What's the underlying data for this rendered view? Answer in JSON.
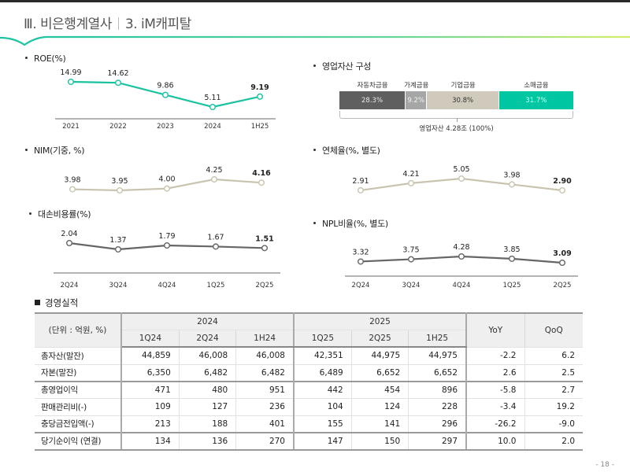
{
  "header": {
    "section": "Ⅲ. 비은행계열사",
    "subsection": "3. iM캐피탈"
  },
  "colors": {
    "accent_teal": "#19c3a0",
    "nim_line": "#c9c4b0",
    "dark_line": "#666666",
    "seg_auto": "#5f5f5f",
    "seg_household": "#a6a6a6",
    "seg_corporate": "#cfcabb",
    "seg_retail": "#00c6a2"
  },
  "chart_data": [
    {
      "type": "line",
      "id": "roe",
      "title": "ROE(%)",
      "categories": [
        "2021",
        "2022",
        "2023",
        "2024",
        "1H25"
      ],
      "values": [
        14.99,
        14.62,
        9.86,
        5.11,
        9.19
      ],
      "labels": [
        "14.99",
        "14.62",
        "9.86",
        "5.11",
        "9.19"
      ],
      "show_axis": true,
      "color": "#19c3a0"
    },
    {
      "type": "line",
      "id": "nim",
      "title": "NIM(기중, %)",
      "categories": [
        "2021",
        "2022",
        "2023",
        "2024",
        "1H25"
      ],
      "values": [
        3.98,
        3.95,
        4.0,
        4.25,
        4.16
      ],
      "labels": [
        "3.98",
        "3.95",
        "4.00",
        "4.25",
        "4.16"
      ],
      "show_axis": false,
      "color": "#c9c4b0"
    },
    {
      "type": "line",
      "id": "credit_cost",
      "title": "대손비용률(%)",
      "categories": [
        "2Q24",
        "3Q24",
        "4Q24",
        "1Q25",
        "2Q25"
      ],
      "values": [
        2.04,
        1.37,
        1.79,
        1.67,
        1.51
      ],
      "labels": [
        "2.04",
        "1.37",
        "1.79",
        "1.67",
        "1.51"
      ],
      "show_axis": true,
      "color": "#666666"
    },
    {
      "type": "line",
      "id": "delinquency",
      "title": "연체율(%, 별도)",
      "categories": [
        "2Q24",
        "3Q24",
        "4Q24",
        "1Q25",
        "2Q25"
      ],
      "values": [
        2.91,
        4.21,
        5.05,
        3.98,
        2.9
      ],
      "labels": [
        "2.91",
        "4.21",
        "5.05",
        "3.98",
        "2.90"
      ],
      "show_axis": false,
      "color": "#c9c4b0"
    },
    {
      "type": "line",
      "id": "npl",
      "title": "NPL비율(%, 별도)",
      "categories": [
        "2Q24",
        "3Q24",
        "4Q24",
        "1Q25",
        "2Q25"
      ],
      "values": [
        3.32,
        3.75,
        4.28,
        3.85,
        3.09
      ],
      "labels": [
        "3.32",
        "3.75",
        "4.28",
        "3.85",
        "3.09"
      ],
      "show_axis": true,
      "color": "#666666"
    },
    {
      "type": "bar",
      "id": "asset_mix",
      "title": "영업자산 구성",
      "stacked": true,
      "categories": [
        "자동차금융",
        "가계금융",
        "기업금융",
        "소매금융"
      ],
      "values": [
        28.3,
        9.2,
        30.8,
        31.7
      ],
      "labels": [
        "28.3%",
        "9.2%",
        "30.8%",
        "31.7%"
      ],
      "total_label": "영업자산 4.28조 (100%)"
    }
  ],
  "performance": {
    "title": "경영실적",
    "unit": "(단위 : 억원, %)",
    "groups": [
      "2024",
      "2025"
    ],
    "columns": [
      "1Q24",
      "2Q24",
      "1H24",
      "1Q25",
      "2Q25",
      "1H25"
    ],
    "yoy": "YoY",
    "qoq": "QoQ",
    "rows": [
      {
        "label": "총자산(말잔)",
        "values": [
          "44,859",
          "46,008",
          "46,008",
          "42,351",
          "44,975",
          "44,975",
          "-2.2",
          "6.2"
        ]
      },
      {
        "label": "자본(말잔)",
        "values": [
          "6,350",
          "6,482",
          "6,482",
          "6,489",
          "6,652",
          "6,652",
          "2.6",
          "2.5"
        ]
      },
      {
        "label": "총영업이익",
        "values": [
          "471",
          "480",
          "951",
          "442",
          "454",
          "896",
          "-5.8",
          "2.7"
        ]
      },
      {
        "label": "판매관리비(-)",
        "values": [
          "109",
          "127",
          "236",
          "104",
          "124",
          "228",
          "-3.4",
          "19.2"
        ]
      },
      {
        "label": "충당금전입액(-)",
        "values": [
          "213",
          "188",
          "401",
          "155",
          "141",
          "296",
          "-26.2",
          "-9.0"
        ]
      },
      {
        "label": "당기순이익 (연결)",
        "values": [
          "134",
          "136",
          "270",
          "147",
          "150",
          "297",
          "10.0",
          "2.0"
        ]
      }
    ]
  },
  "page_number": "- 18 -"
}
